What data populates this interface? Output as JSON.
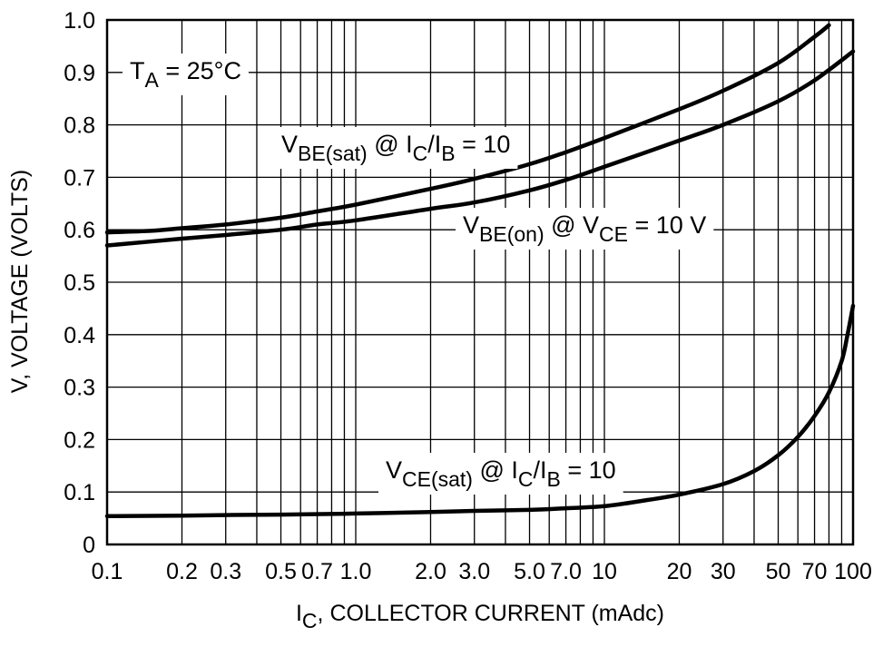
{
  "chart_data": {
    "type": "line",
    "xscale": "log",
    "xlim": [
      0.1,
      100
    ],
    "ylim": [
      0,
      1.0
    ],
    "xlabel": {
      "main": "I",
      "sub": "C",
      "rest": ", COLLECTOR CURRENT (mAdc)"
    },
    "ylabel": "V, VOLTAGE (VOLTS)",
    "x_ticks": [
      {
        "value": 0.1,
        "label": "0.1"
      },
      {
        "value": 0.2,
        "label": "0.2"
      },
      {
        "value": 0.3,
        "label": "0.3"
      },
      {
        "value": 0.5,
        "label": "0.5"
      },
      {
        "value": 0.7,
        "label": "0.7"
      },
      {
        "value": 1.0,
        "label": "1.0"
      },
      {
        "value": 2.0,
        "label": "2.0"
      },
      {
        "value": 3.0,
        "label": "3.0"
      },
      {
        "value": 5.0,
        "label": "5.0"
      },
      {
        "value": 7.0,
        "label": "7.0"
      },
      {
        "value": 10,
        "label": "10"
      },
      {
        "value": 20,
        "label": "20"
      },
      {
        "value": 30,
        "label": "30"
      },
      {
        "value": 50,
        "label": "50"
      },
      {
        "value": 70,
        "label": "70"
      },
      {
        "value": 100,
        "label": "100"
      }
    ],
    "y_ticks": [
      {
        "value": 0,
        "label": "0"
      },
      {
        "value": 0.1,
        "label": "0.1"
      },
      {
        "value": 0.2,
        "label": "0.2"
      },
      {
        "value": 0.3,
        "label": "0.3"
      },
      {
        "value": 0.4,
        "label": "0.4"
      },
      {
        "value": 0.5,
        "label": "0.5"
      },
      {
        "value": 0.6,
        "label": "0.6"
      },
      {
        "value": 0.7,
        "label": "0.7"
      },
      {
        "value": 0.8,
        "label": "0.8"
      },
      {
        "value": 0.9,
        "label": "0.9"
      },
      {
        "value": 1.0,
        "label": "1.0"
      }
    ],
    "temperature_note": {
      "main": "T",
      "sub": "A",
      "rest": " = 25°C"
    },
    "series": [
      {
        "name": "VBE(sat) @ IC/IB = 10",
        "label": [
          {
            "t": "V",
            "sub": false
          },
          {
            "t": "BE(sat)",
            "sub": true
          },
          {
            "t": " @ I",
            "sub": false
          },
          {
            "t": "C",
            "sub": true
          },
          {
            "t": "/I",
            "sub": false
          },
          {
            "t": "B",
            "sub": true
          },
          {
            "t": " = 10",
            "sub": false
          }
        ],
        "x": [
          0.1,
          0.15,
          0.2,
          0.3,
          0.5,
          0.7,
          1,
          2,
          3,
          5,
          7,
          10,
          20,
          30,
          50,
          70,
          80
        ],
        "y": [
          0.595,
          0.598,
          0.603,
          0.61,
          0.623,
          0.635,
          0.648,
          0.678,
          0.697,
          0.725,
          0.748,
          0.775,
          0.83,
          0.865,
          0.918,
          0.968,
          0.99
        ]
      },
      {
        "name": "VBE(on) @ VCE = 10 V",
        "label": [
          {
            "t": "V",
            "sub": false
          },
          {
            "t": "BE(on)",
            "sub": true
          },
          {
            "t": " @ V",
            "sub": false
          },
          {
            "t": "CE",
            "sub": true
          },
          {
            "t": " = 10 V",
            "sub": false
          }
        ],
        "x": [
          0.1,
          0.2,
          0.3,
          0.5,
          0.7,
          1,
          2,
          3,
          5,
          7,
          10,
          20,
          30,
          50,
          70,
          100
        ],
        "y": [
          0.57,
          0.583,
          0.59,
          0.6,
          0.61,
          0.618,
          0.64,
          0.652,
          0.675,
          0.695,
          0.72,
          0.77,
          0.8,
          0.845,
          0.885,
          0.94
        ]
      },
      {
        "name": "VCE(sat) @ IC/IB = 10",
        "label": [
          {
            "t": "V",
            "sub": false
          },
          {
            "t": "CE(sat)",
            "sub": true
          },
          {
            "t": " @ I",
            "sub": false
          },
          {
            "t": "C",
            "sub": true
          },
          {
            "t": "/I",
            "sub": false
          },
          {
            "t": "B",
            "sub": true
          },
          {
            "t": " = 10",
            "sub": false
          }
        ],
        "x": [
          0.1,
          0.2,
          0.3,
          0.5,
          1,
          2,
          3,
          5,
          7,
          10,
          15,
          20,
          30,
          40,
          50,
          60,
          70,
          80,
          90,
          95,
          100
        ],
        "y": [
          0.054,
          0.055,
          0.056,
          0.057,
          0.059,
          0.062,
          0.064,
          0.066,
          0.069,
          0.073,
          0.085,
          0.095,
          0.115,
          0.14,
          0.17,
          0.205,
          0.245,
          0.29,
          0.35,
          0.4,
          0.455
        ]
      }
    ]
  }
}
